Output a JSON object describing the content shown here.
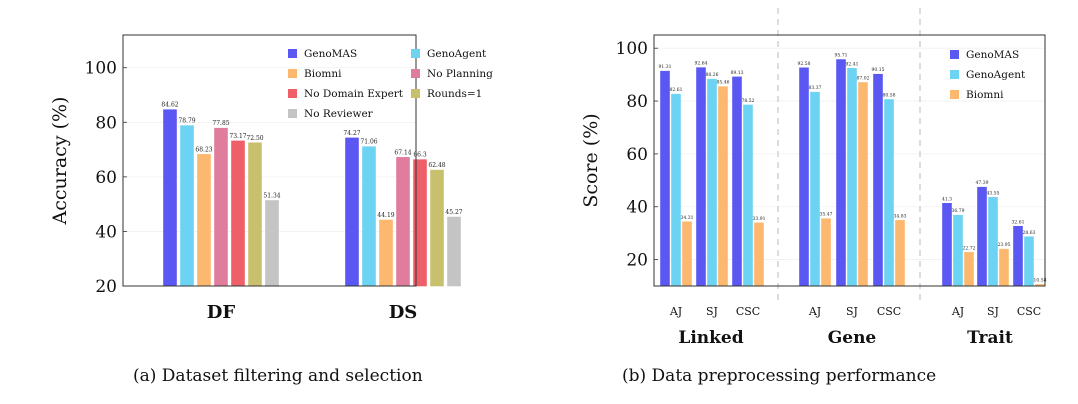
{
  "chart_data": [
    {
      "type": "bar",
      "ylabel": "Accuracy (%)",
      "ylim": [
        20,
        112
      ],
      "yticks": [
        20,
        40,
        60,
        80,
        100
      ],
      "categories": [
        "DF",
        "DS"
      ],
      "legend_position": "top-right",
      "caption": "(a) Dataset filtering and selection",
      "series": [
        {
          "name": "GenoMAS",
          "color": "#5a57f2",
          "values": [
            84.62,
            74.27
          ],
          "labels": [
            "84.62",
            "74.27"
          ]
        },
        {
          "name": "GenoAgent",
          "color": "#6dd3f2",
          "values": [
            78.79,
            71.06
          ],
          "labels": [
            "78.79",
            "71.06"
          ]
        },
        {
          "name": "Biomni",
          "color": "#fdb86f",
          "values": [
            68.23,
            44.19
          ],
          "labels": [
            "68.23",
            "44.19"
          ]
        },
        {
          "name": "No Planning",
          "color": "#e07d9d",
          "values": [
            77.85,
            67.14
          ],
          "labels": [
            "77.85",
            "67.14"
          ]
        },
        {
          "name": "No Domain Expert",
          "color": "#ee5f68",
          "values": [
            73.17,
            66.3
          ],
          "labels": [
            "73.17",
            "66.3"
          ]
        },
        {
          "name": "Rounds=1",
          "color": "#c9c06e",
          "values": [
            72.5,
            62.48
          ],
          "labels": [
            "72.50",
            "62.48"
          ]
        },
        {
          "name": "No Reviewer",
          "color": "#c4c4c4",
          "values": [
            51.34,
            45.27
          ],
          "labels": [
            "51.34",
            "45.27"
          ]
        }
      ]
    },
    {
      "type": "bar",
      "ylabel": "Score (%)",
      "ylim": [
        10,
        105
      ],
      "yticks": [
        20,
        40,
        60,
        80,
        100
      ],
      "groups": [
        {
          "name": "Linked",
          "categories": [
            "AJ",
            "SJ",
            "CSC"
          ]
        },
        {
          "name": "Gene",
          "categories": [
            "AJ",
            "SJ",
            "CSC"
          ]
        },
        {
          "name": "Trait",
          "categories": [
            "AJ",
            "SJ",
            "CSC"
          ]
        }
      ],
      "legend_position": "top-right",
      "caption": "(b) Data preprocessing performance",
      "series": [
        {
          "name": "GenoMAS",
          "color": "#5a57f2",
          "values": [
            91.31,
            92.64,
            89.13,
            92.58,
            95.71,
            90.15,
            41.3,
            47.39,
            32.61
          ],
          "labels": [
            "91.31",
            "92.64",
            "89.13",
            "92.58",
            "95.71",
            "90.15",
            "41.3",
            "47.39",
            "32.61"
          ]
        },
        {
          "name": "GenoAgent",
          "color": "#6dd3f2",
          "values": [
            82.61,
            88.26,
            78.52,
            83.37,
            92.41,
            80.58,
            36.79,
            43.55,
            28.63
          ],
          "labels": [
            "82.61",
            "88.26",
            "78.52",
            "83.37",
            "92.41",
            "80.58",
            "36.79",
            "43.55",
            "28.63"
          ]
        },
        {
          "name": "Biomni",
          "color": "#fdb86f",
          "values": [
            34.31,
            85.46,
            33.91,
            35.47,
            87.02,
            34.83,
            22.72,
            23.95,
            10.58
          ],
          "labels": [
            "34.31",
            "85.46",
            "33.91",
            "35.47",
            "87.02",
            "34.83",
            "22.72",
            "23.95",
            "10.58"
          ]
        }
      ]
    }
  ]
}
